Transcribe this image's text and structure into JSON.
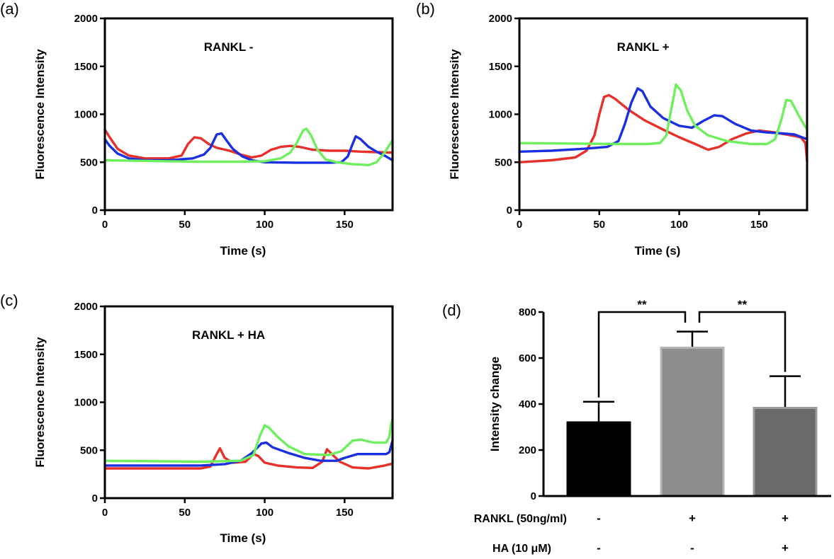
{
  "chart_data": [
    {
      "type": "line",
      "panel": "(a)",
      "title": "RANKL -",
      "xlabel": "Time (s)",
      "ylabel": "Fluorescence Intensity",
      "xlim": [
        0,
        180
      ],
      "ylim": [
        0,
        2000
      ],
      "xticks": [
        0,
        50,
        100,
        150
      ],
      "yticks": [
        0,
        500,
        1000,
        1500,
        2000
      ],
      "grid": false,
      "series": [
        {
          "color": "#e8302a",
          "points": [
            [
              0,
              840
            ],
            [
              3,
              760
            ],
            [
              8,
              640
            ],
            [
              15,
              570
            ],
            [
              25,
              540
            ],
            [
              40,
              540
            ],
            [
              48,
              570
            ],
            [
              52,
              690
            ],
            [
              56,
              760
            ],
            [
              60,
              750
            ],
            [
              65,
              690
            ],
            [
              70,
              650
            ],
            [
              78,
              620
            ],
            [
              85,
              580
            ],
            [
              92,
              550
            ],
            [
              98,
              570
            ],
            [
              104,
              630
            ],
            [
              110,
              660
            ],
            [
              116,
              670
            ],
            [
              122,
              660
            ],
            [
              130,
              630
            ],
            [
              140,
              620
            ],
            [
              150,
              620
            ],
            [
              160,
              610
            ],
            [
              170,
              605
            ],
            [
              180,
              600
            ]
          ]
        },
        {
          "color": "#1a2fe0",
          "points": [
            [
              0,
              740
            ],
            [
              3,
              670
            ],
            [
              8,
              590
            ],
            [
              15,
              540
            ],
            [
              25,
              520
            ],
            [
              40,
              520
            ],
            [
              55,
              540
            ],
            [
              62,
              580
            ],
            [
              66,
              650
            ],
            [
              70,
              790
            ],
            [
              73,
              800
            ],
            [
              76,
              730
            ],
            [
              80,
              640
            ],
            [
              86,
              560
            ],
            [
              92,
              520
            ],
            [
              100,
              500
            ],
            [
              120,
              495
            ],
            [
              140,
              495
            ],
            [
              148,
              500
            ],
            [
              152,
              560
            ],
            [
              155,
              690
            ],
            [
              157,
              770
            ],
            [
              160,
              740
            ],
            [
              165,
              660
            ],
            [
              170,
              610
            ],
            [
              175,
              570
            ],
            [
              180,
              520
            ]
          ]
        },
        {
          "color": "#6ef05e",
          "points": [
            [
              0,
              520
            ],
            [
              20,
              515
            ],
            [
              40,
              510
            ],
            [
              60,
              505
            ],
            [
              80,
              505
            ],
            [
              100,
              510
            ],
            [
              110,
              540
            ],
            [
              116,
              600
            ],
            [
              120,
              700
            ],
            [
              124,
              830
            ],
            [
              126,
              850
            ],
            [
              129,
              780
            ],
            [
              133,
              630
            ],
            [
              138,
              530
            ],
            [
              145,
              500
            ],
            [
              155,
              480
            ],
            [
              165,
              470
            ],
            [
              170,
              500
            ],
            [
              175,
              600
            ],
            [
              180,
              730
            ]
          ]
        }
      ]
    },
    {
      "type": "line",
      "panel": "(b)",
      "title": "RANKL +",
      "xlabel": "Time (s)",
      "ylabel": "Fluorescence Intensity",
      "xlim": [
        0,
        180
      ],
      "ylim": [
        0,
        2000
      ],
      "xticks": [
        0,
        50,
        100,
        150
      ],
      "yticks": [
        0,
        500,
        1000,
        1500,
        2000
      ],
      "grid": false,
      "series": [
        {
          "color": "#e8302a",
          "points": [
            [
              0,
              500
            ],
            [
              20,
              520
            ],
            [
              35,
              550
            ],
            [
              42,
              620
            ],
            [
              47,
              780
            ],
            [
              50,
              1000
            ],
            [
              53,
              1180
            ],
            [
              56,
              1200
            ],
            [
              60,
              1160
            ],
            [
              68,
              1050
            ],
            [
              78,
              940
            ],
            [
              90,
              840
            ],
            [
              100,
              760
            ],
            [
              110,
              690
            ],
            [
              118,
              630
            ],
            [
              125,
              660
            ],
            [
              133,
              740
            ],
            [
              142,
              800
            ],
            [
              150,
              830
            ],
            [
              160,
              810
            ],
            [
              170,
              780
            ],
            [
              176,
              760
            ],
            [
              179,
              700
            ],
            [
              180,
              510
            ]
          ]
        },
        {
          "color": "#1a2fe0",
          "points": [
            [
              0,
              610
            ],
            [
              20,
              620
            ],
            [
              40,
              640
            ],
            [
              55,
              660
            ],
            [
              62,
              720
            ],
            [
              66,
              900
            ],
            [
              70,
              1120
            ],
            [
              74,
              1270
            ],
            [
              77,
              1240
            ],
            [
              82,
              1080
            ],
            [
              90,
              960
            ],
            [
              100,
              880
            ],
            [
              108,
              860
            ],
            [
              115,
              930
            ],
            [
              122,
              990
            ],
            [
              127,
              980
            ],
            [
              135,
              900
            ],
            [
              145,
              830
            ],
            [
              155,
              810
            ],
            [
              165,
              800
            ],
            [
              172,
              790
            ],
            [
              180,
              740
            ]
          ]
        },
        {
          "color": "#6ef05e",
          "points": [
            [
              0,
              700
            ],
            [
              30,
              695
            ],
            [
              60,
              690
            ],
            [
              80,
              690
            ],
            [
              88,
              700
            ],
            [
              92,
              780
            ],
            [
              95,
              1050
            ],
            [
              98,
              1310
            ],
            [
              101,
              1250
            ],
            [
              105,
              1040
            ],
            [
              110,
              880
            ],
            [
              118,
              780
            ],
            [
              130,
              720
            ],
            [
              145,
              690
            ],
            [
              155,
              690
            ],
            [
              160,
              740
            ],
            [
              164,
              950
            ],
            [
              167,
              1150
            ],
            [
              170,
              1140
            ],
            [
              175,
              980
            ],
            [
              180,
              840
            ]
          ]
        }
      ]
    },
    {
      "type": "line",
      "panel": "(c)",
      "title": "RANKL + HA",
      "xlabel": "Time (s)",
      "ylabel": "Fluorescence Intensity",
      "xlim": [
        0,
        180
      ],
      "ylim": [
        0,
        2000
      ],
      "xticks": [
        0,
        50,
        100,
        150
      ],
      "yticks": [
        0,
        500,
        1000,
        1500,
        2000
      ],
      "grid": false,
      "series": [
        {
          "color": "#e8302a",
          "points": [
            [
              0,
              310
            ],
            [
              30,
              310
            ],
            [
              60,
              310
            ],
            [
              66,
              330
            ],
            [
              70,
              460
            ],
            [
              72,
              520
            ],
            [
              75,
              420
            ],
            [
              80,
              370
            ],
            [
              88,
              380
            ],
            [
              93,
              460
            ],
            [
              96,
              440
            ],
            [
              100,
              370
            ],
            [
              108,
              340
            ],
            [
              120,
              320
            ],
            [
              130,
              315
            ],
            [
              136,
              380
            ],
            [
              139,
              510
            ],
            [
              142,
              460
            ],
            [
              147,
              380
            ],
            [
              155,
              320
            ],
            [
              165,
              310
            ],
            [
              175,
              340
            ],
            [
              180,
              360
            ]
          ]
        },
        {
          "color": "#1a2fe0",
          "points": [
            [
              0,
              340
            ],
            [
              30,
              340
            ],
            [
              60,
              340
            ],
            [
              75,
              355
            ],
            [
              85,
              390
            ],
            [
              92,
              470
            ],
            [
              98,
              570
            ],
            [
              101,
              580
            ],
            [
              105,
              530
            ],
            [
              115,
              470
            ],
            [
              125,
              420
            ],
            [
              135,
              390
            ],
            [
              145,
              390
            ],
            [
              150,
              420
            ],
            [
              158,
              460
            ],
            [
              168,
              460
            ],
            [
              176,
              460
            ],
            [
              178,
              480
            ],
            [
              180,
              600
            ]
          ]
        },
        {
          "color": "#6ef05e",
          "points": [
            [
              0,
              390
            ],
            [
              30,
              385
            ],
            [
              60,
              380
            ],
            [
              85,
              390
            ],
            [
              93,
              450
            ],
            [
              97,
              650
            ],
            [
              100,
              760
            ],
            [
              103,
              730
            ],
            [
              108,
              640
            ],
            [
              115,
              540
            ],
            [
              125,
              460
            ],
            [
              140,
              450
            ],
            [
              148,
              490
            ],
            [
              155,
              600
            ],
            [
              160,
              610
            ],
            [
              168,
              580
            ],
            [
              176,
              580
            ],
            [
              178,
              640
            ],
            [
              179,
              760
            ],
            [
              180,
              830
            ]
          ]
        }
      ]
    },
    {
      "type": "bar",
      "panel": "(d)",
      "ylabel": "Intensity change",
      "ylim": [
        0,
        800
      ],
      "yticks": [
        0,
        200,
        400,
        600,
        800
      ],
      "grid": false,
      "bars": [
        {
          "value": 320,
          "error": 90,
          "color": "#000000"
        },
        {
          "value": 645,
          "error": 70,
          "color": "#8c8c8c"
        },
        {
          "value": 383,
          "error": 138,
          "color": "#6a6a6a"
        }
      ],
      "significance": [
        {
          "from": 0,
          "to": 1,
          "label": "**"
        },
        {
          "from": 1,
          "to": 2,
          "label": "**"
        }
      ],
      "conditions": [
        {
          "label": "RANKL (50ng/ml)",
          "values": [
            "-",
            "+",
            "+"
          ]
        },
        {
          "label": "HA (10 μM)",
          "values": [
            "-",
            "-",
            "+"
          ]
        }
      ]
    }
  ]
}
